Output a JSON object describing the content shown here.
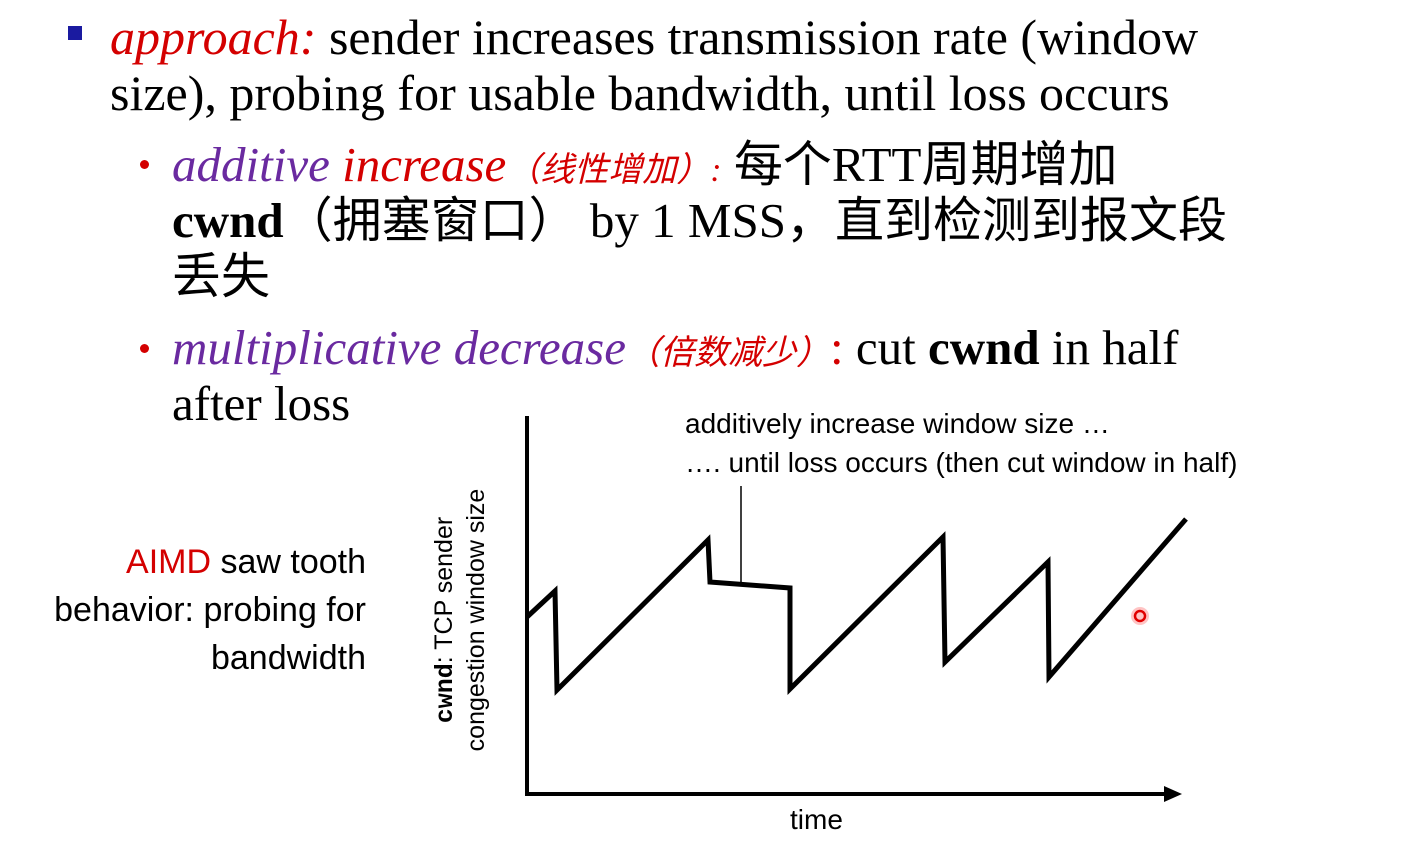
{
  "bullet_main": {
    "label": "approach:",
    "text_line1": " sender increases transmission rate (window",
    "text_line2": "size), probing for usable bandwidth, until loss occurs"
  },
  "sub1": {
    "title": "additive increase",
    "title_word1": "additive",
    "title_word2": "increase",
    "cn_paren": "（线性增加）:",
    "rest_line1": " 每个RTT周期增加",
    "cwnd": "cwnd",
    "rest_line2": "（拥塞窗口） by 1 MSS，直到检测到报文段",
    "rest_line3": "丢失"
  },
  "sub2": {
    "title_word1": "multiplicative",
    "title_word2": "decrease",
    "cn_paren": "（倍数减少）",
    "colon": ":",
    "rest_a": " cut ",
    "cwnd": "cwnd",
    "rest_b": " in half",
    "rest_line2": "after loss"
  },
  "side_caption": {
    "aimd": "AIMD",
    "rest": " saw tooth behavior: probing for bandwidth"
  },
  "annotation": {
    "line1": "additively increase window size …",
    "line2": "…. until loss occurs (then cut window in half)"
  },
  "diagram": {
    "y_label_mono": "cwnd",
    "y_label_rest": ": TCP sender",
    "y_label_line2": "congestion window size",
    "x_label": "time"
  },
  "colors": {
    "red": "#d40000",
    "purple": "#6a2aa0",
    "bullet_blue": "#1a1aa0"
  }
}
